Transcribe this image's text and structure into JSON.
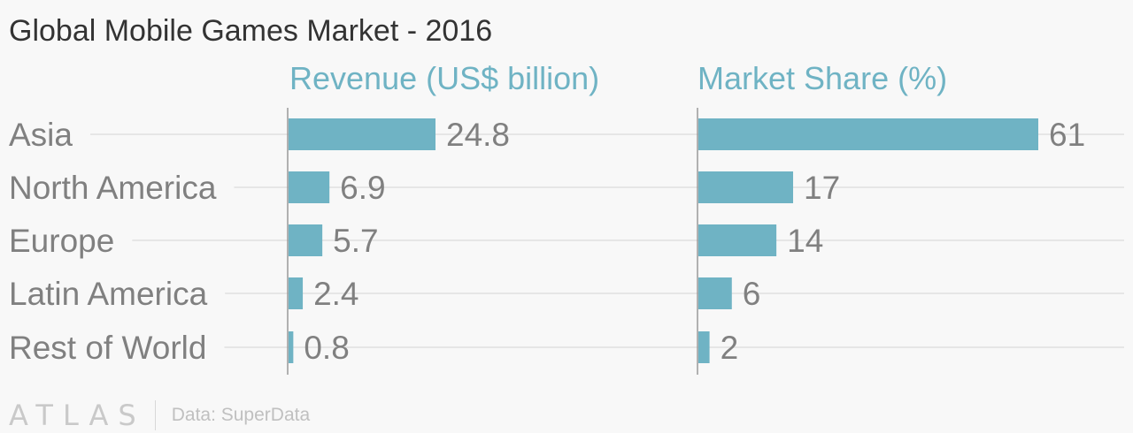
{
  "chart_data": {
    "type": "bar",
    "title": "Global Mobile Games Market - 2016",
    "categories": [
      "Asia",
      "North America",
      "Europe",
      "Latin America",
      "Rest of World"
    ],
    "series": [
      {
        "name": "Revenue (US$ billion)",
        "values": [
          24.8,
          6.9,
          5.7,
          2.4,
          0.8
        ],
        "labels": [
          "24.8",
          "6.9",
          "5.7",
          "2.4",
          "0.8"
        ],
        "xlim": [
          0,
          26
        ]
      },
      {
        "name": "Market Share (%)",
        "values": [
          61,
          17,
          14,
          6,
          2
        ],
        "labels": [
          "61",
          "17",
          "14",
          "6",
          "2"
        ],
        "xlim": [
          0,
          62
        ]
      }
    ],
    "orientation": "horizontal",
    "bar_color": "#6fb3c4",
    "grid": true
  },
  "footer": {
    "logo": "ATLAS",
    "source": "Data: SuperData"
  }
}
